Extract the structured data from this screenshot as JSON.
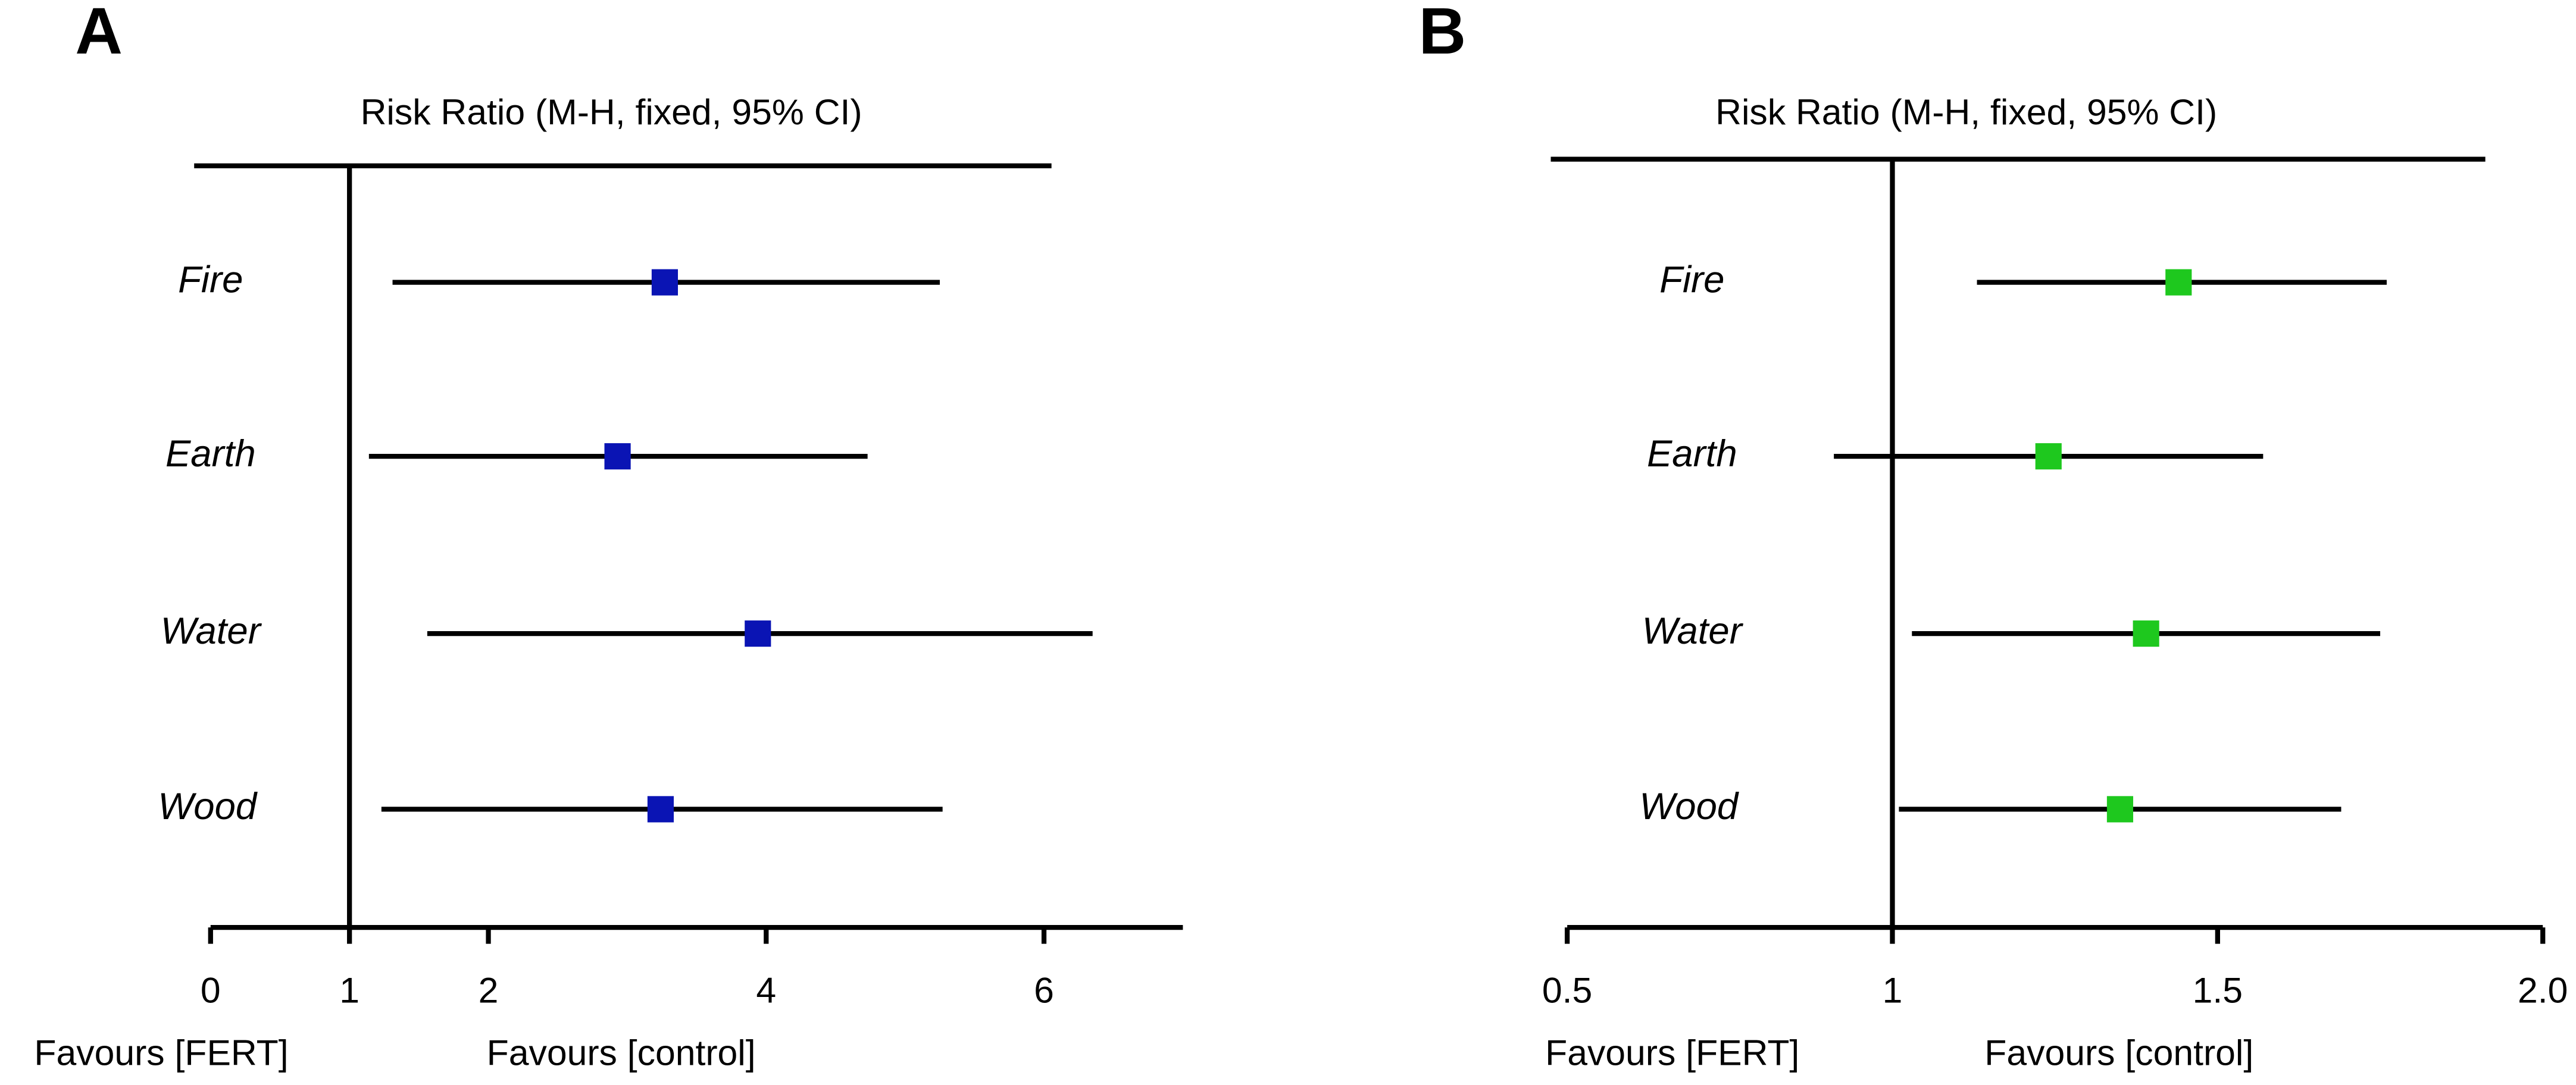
{
  "chart_data": [
    {
      "type": "forest",
      "panel": "A",
      "title": "Risk Ratio (M-H, fixed, 95% CI)",
      "categories": [
        "Fire",
        "Earth",
        "Water",
        "Wood"
      ],
      "values": [
        3.27,
        2.93,
        3.94,
        3.24
      ],
      "ci_lower": [
        1.31,
        1.14,
        1.56,
        1.23
      ],
      "ci_upper": [
        5.25,
        4.73,
        6.35,
        5.27
      ],
      "color": "#0a14b4",
      "null_line": 1,
      "xlim": [
        0,
        7
      ],
      "xticks": [
        0,
        1,
        2,
        4,
        6
      ],
      "favours_left": "Favours [FERT]",
      "favours_right": "Favours [control]"
    },
    {
      "type": "forest",
      "panel": "B",
      "title": "Risk Ratio (M-H, fixed, 95% CI)",
      "categories": [
        "Fire",
        "Earth",
        "Water",
        "Wood"
      ],
      "values": [
        1.44,
        1.24,
        1.39,
        1.35
      ],
      "ci_lower": [
        1.13,
        0.91,
        1.03,
        1.01
      ],
      "ci_upper": [
        1.76,
        1.57,
        1.75,
        1.69
      ],
      "color": "#1ec81e",
      "null_line": 1,
      "xlim": [
        0.5,
        2.0
      ],
      "xticks": [
        0.5,
        1,
        1.5,
        {
          "value": 2,
          "label": "2.0"
        }
      ],
      "favours_left": "Favours [FERT]",
      "favours_right": "Favours [control]"
    }
  ]
}
